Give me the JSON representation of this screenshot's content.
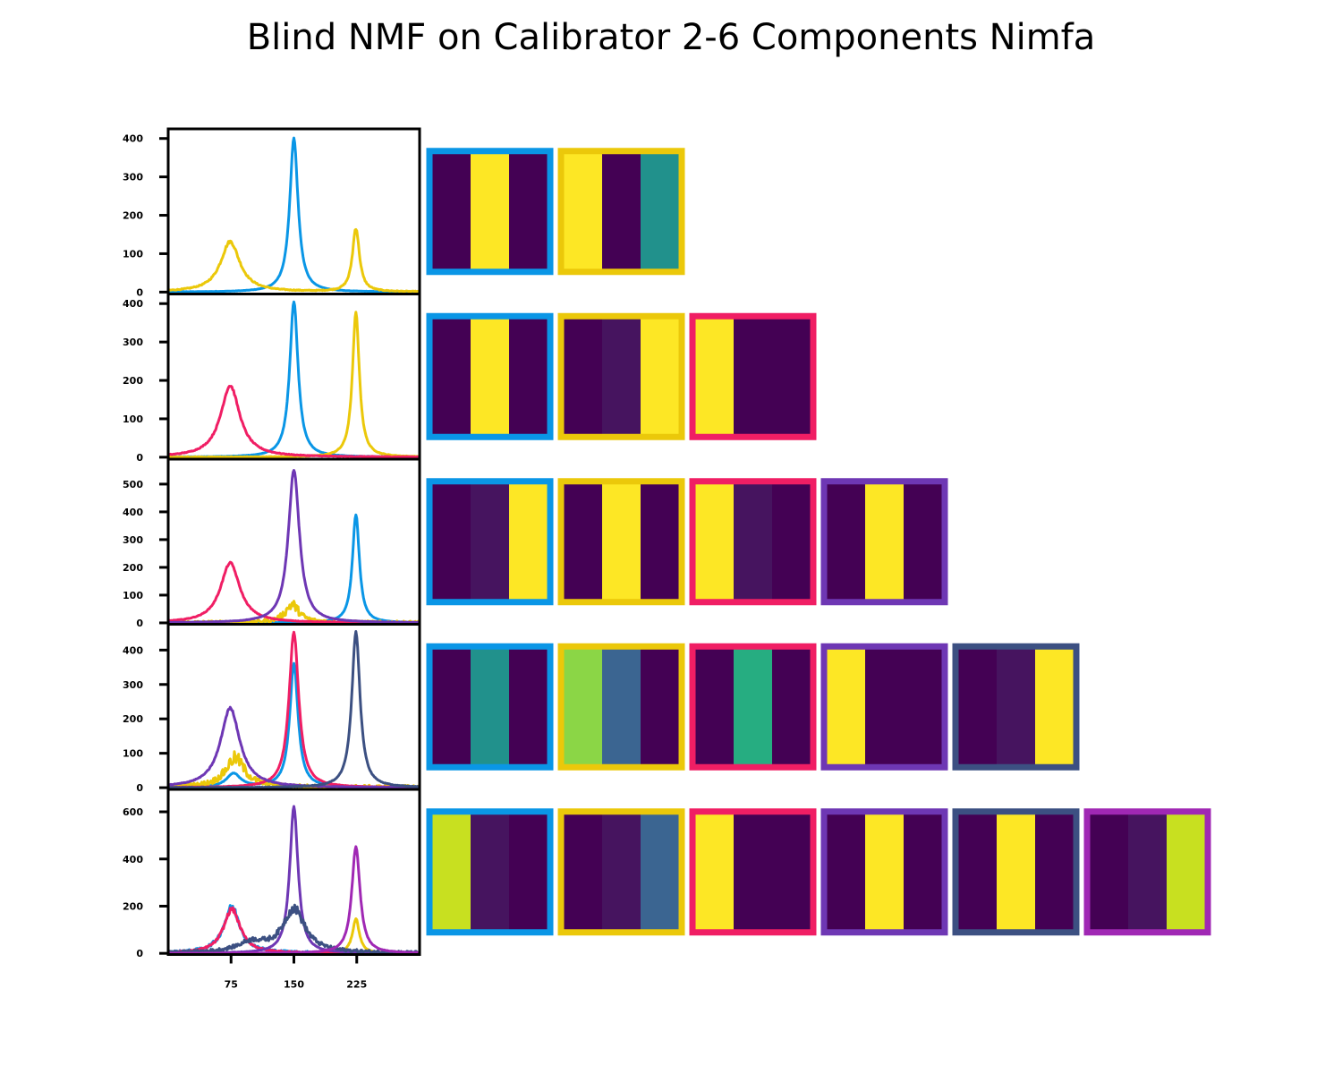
{
  "title": "Blind NMF on Calibrator 2-6 Components Nimfa",
  "colors": {
    "blue": "#0a96e6",
    "yellow": "#ebc80a",
    "pink": "#f01e64",
    "purple": "#6e37b4",
    "navy": "#3c5082",
    "magenta": "#a028b4",
    "viridis_dark": "#440154",
    "viridis_darkpurple": "#46145f",
    "viridis_yellow": "#fde725",
    "viridis_teal": "#21918c",
    "viridis_blue": "#3b6591",
    "viridis_green": "#26ad81",
    "viridis_lime": "#8bd646",
    "viridis_yellowgreen": "#c8e020"
  },
  "chart_data": [
    {
      "type": "line",
      "components": 2,
      "xlim": [
        0,
        300
      ],
      "xticks": [
        75,
        150,
        225
      ],
      "ylim": [
        -5,
        425
      ],
      "yticks": [
        "0",
        "100",
        "200",
        "300",
        "400"
      ],
      "series": [
        {
          "color": "blue",
          "peaks": [
            {
              "x": 150,
              "height": 400,
              "width": 6
            }
          ],
          "noise": 2
        },
        {
          "color": "yellow",
          "peaks": [
            {
              "x": 74,
              "height": 130,
              "width": 14
            },
            {
              "x": 224,
              "height": 165,
              "width": 5
            }
          ],
          "noise": 5
        }
      ],
      "maps": [
        {
          "border": "blue",
          "bands": [
            "viridis_dark",
            "viridis_yellow",
            "viridis_dark"
          ]
        },
        {
          "border": "yellow",
          "bands": [
            "viridis_yellow",
            "viridis_dark",
            "viridis_teal"
          ]
        }
      ]
    },
    {
      "type": "line",
      "components": 3,
      "xlim": [
        0,
        300
      ],
      "xticks": [
        75,
        150,
        225
      ],
      "ylim": [
        -5,
        425
      ],
      "yticks": [
        "0",
        "100",
        "200",
        "300",
        "400"
      ],
      "series": [
        {
          "color": "blue",
          "peaks": [
            {
              "x": 150,
              "height": 405,
              "width": 6
            }
          ],
          "noise": 2
        },
        {
          "color": "yellow",
          "peaks": [
            {
              "x": 224,
              "height": 375,
              "width": 5
            }
          ],
          "noise": 4
        },
        {
          "color": "pink",
          "peaks": [
            {
              "x": 74,
              "height": 185,
              "width": 14
            }
          ],
          "noise": 4
        }
      ],
      "maps": [
        {
          "border": "blue",
          "bands": [
            "viridis_dark",
            "viridis_yellow",
            "viridis_dark"
          ]
        },
        {
          "border": "yellow",
          "bands": [
            "viridis_dark",
            "viridis_darkpurple",
            "viridis_yellow"
          ]
        },
        {
          "border": "pink",
          "bands": [
            "viridis_yellow",
            "viridis_dark",
            "viridis_dark"
          ]
        }
      ]
    },
    {
      "type": "line",
      "components": 4,
      "xlim": [
        0,
        300
      ],
      "xticks": [
        75,
        150,
        225
      ],
      "ylim": [
        -5,
        590
      ],
      "yticks": [
        "0",
        "100",
        "200",
        "300",
        "400",
        "500"
      ],
      "series": [
        {
          "color": "blue",
          "peaks": [
            {
              "x": 224,
              "height": 390,
              "width": 5
            }
          ],
          "noise": 2
        },
        {
          "color": "yellow",
          "peaks": [
            {
              "x": 148,
              "height": 60,
              "width": 10
            }
          ],
          "noise": 25
        },
        {
          "color": "pink",
          "peaks": [
            {
              "x": 74,
              "height": 215,
              "width": 14
            }
          ],
          "noise": 4
        },
        {
          "color": "purple",
          "peaks": [
            {
              "x": 150,
              "height": 550,
              "width": 8
            }
          ],
          "noise": 3
        }
      ],
      "maps": [
        {
          "border": "blue",
          "bands": [
            "viridis_dark",
            "viridis_darkpurple",
            "viridis_yellow"
          ]
        },
        {
          "border": "yellow",
          "bands": [
            "viridis_dark",
            "viridis_yellow",
            "viridis_dark"
          ]
        },
        {
          "border": "pink",
          "bands": [
            "viridis_yellow",
            "viridis_darkpurple",
            "viridis_dark"
          ]
        },
        {
          "border": "purple",
          "bands": [
            "viridis_dark",
            "viridis_yellow",
            "viridis_dark"
          ]
        }
      ]
    },
    {
      "type": "line",
      "components": 5,
      "xlim": [
        0,
        300
      ],
      "xticks": [
        75,
        150,
        225
      ],
      "ylim": [
        -5,
        475
      ],
      "yticks": [
        "0",
        "100",
        "200",
        "300",
        "400"
      ],
      "series": [
        {
          "color": "blue",
          "peaks": [
            {
              "x": 150,
              "height": 360,
              "width": 6
            },
            {
              "x": 78,
              "height": 40,
              "width": 10
            }
          ],
          "noise": 3
        },
        {
          "color": "yellow",
          "peaks": [
            {
              "x": 80,
              "height": 80,
              "width": 14
            }
          ],
          "noise": 25
        },
        {
          "color": "pink",
          "peaks": [
            {
              "x": 150,
              "height": 450,
              "width": 7
            }
          ],
          "noise": 3
        },
        {
          "color": "purple",
          "peaks": [
            {
              "x": 74,
              "height": 230,
              "width": 14
            }
          ],
          "noise": 4
        },
        {
          "color": "navy",
          "peaks": [
            {
              "x": 224,
              "height": 450,
              "width": 6
            }
          ],
          "noise": 4
        }
      ],
      "maps": [
        {
          "border": "blue",
          "bands": [
            "viridis_dark",
            "viridis_teal",
            "viridis_dark"
          ]
        },
        {
          "border": "yellow",
          "bands": [
            "viridis_lime",
            "viridis_blue",
            "viridis_dark"
          ]
        },
        {
          "border": "pink",
          "bands": [
            "viridis_dark",
            "viridis_green",
            "viridis_dark"
          ]
        },
        {
          "border": "purple",
          "bands": [
            "viridis_yellow",
            "viridis_dark",
            "viridis_dark"
          ]
        },
        {
          "border": "navy",
          "bands": [
            "viridis_dark",
            "viridis_darkpurple",
            "viridis_yellow"
          ]
        }
      ]
    },
    {
      "type": "line",
      "components": 6,
      "xlim": [
        0,
        300
      ],
      "xticks": [
        75,
        150,
        225
      ],
      "ylim": [
        -5,
        695
      ],
      "yticks": [
        "0",
        "200",
        "400",
        "600"
      ],
      "series": [
        {
          "color": "blue",
          "peaks": [
            {
              "x": 76,
              "height": 190,
              "width": 12
            }
          ],
          "noise": 20
        },
        {
          "color": "yellow",
          "peaks": [
            {
              "x": 224,
              "height": 145,
              "width": 5
            }
          ],
          "noise": 4
        },
        {
          "color": "pink",
          "peaks": [
            {
              "x": 76,
              "height": 185,
              "width": 12
            }
          ],
          "noise": 12
        },
        {
          "color": "purple",
          "peaks": [
            {
              "x": 150,
              "height": 620,
              "width": 6
            }
          ],
          "noise": 4
        },
        {
          "color": "navy",
          "peaks": [
            {
              "x": 150,
              "height": 180,
              "width": 16
            },
            {
              "x": 100,
              "height": 40,
              "width": 20
            }
          ],
          "noise": 25
        },
        {
          "color": "magenta",
          "peaks": [
            {
              "x": 224,
              "height": 450,
              "width": 6
            }
          ],
          "noise": 3
        }
      ],
      "maps": [
        {
          "border": "blue",
          "bands": [
            "viridis_yellowgreen",
            "viridis_darkpurple",
            "viridis_dark"
          ]
        },
        {
          "border": "yellow",
          "bands": [
            "viridis_dark",
            "viridis_darkpurple",
            "viridis_blue"
          ]
        },
        {
          "border": "pink",
          "bands": [
            "viridis_yellow",
            "viridis_dark",
            "viridis_dark"
          ]
        },
        {
          "border": "purple",
          "bands": [
            "viridis_dark",
            "viridis_yellow",
            "viridis_dark"
          ]
        },
        {
          "border": "navy",
          "bands": [
            "viridis_dark",
            "viridis_yellow",
            "viridis_dark"
          ]
        },
        {
          "border": "magenta",
          "bands": [
            "viridis_dark",
            "viridis_darkpurple",
            "viridis_yellowgreen"
          ]
        }
      ]
    }
  ]
}
